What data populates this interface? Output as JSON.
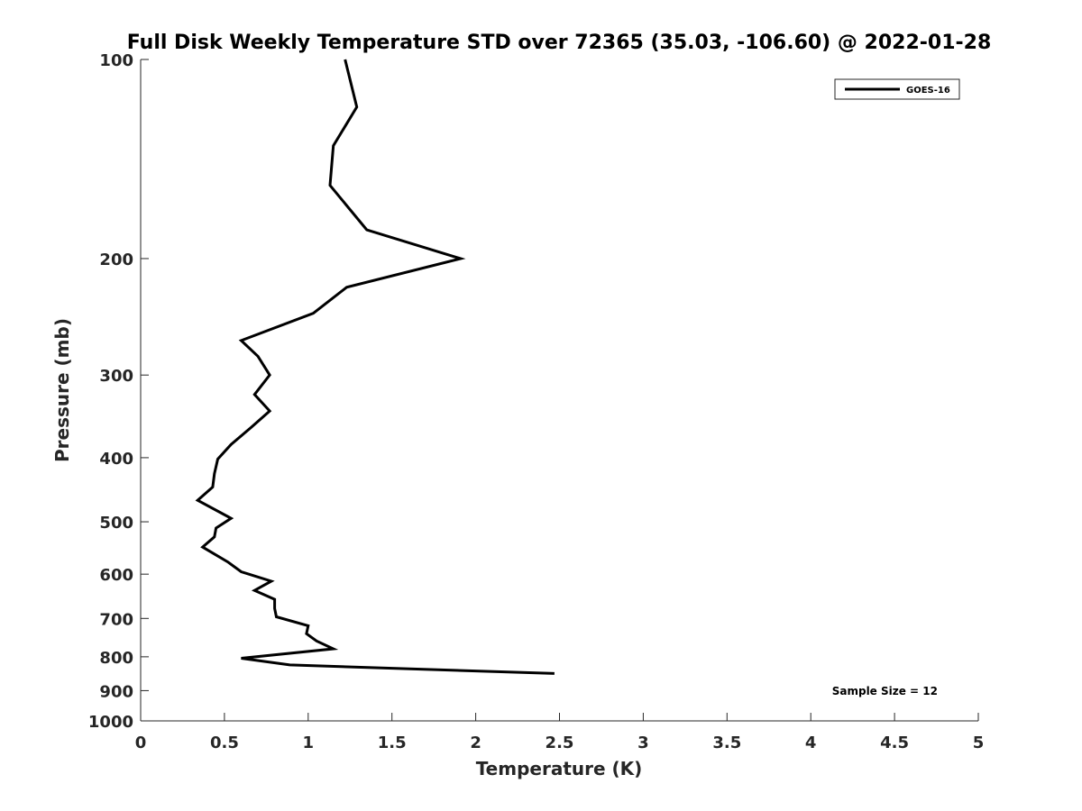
{
  "chart_data": {
    "type": "line",
    "title": "Full Disk Weekly Temperature STD over 72365 (35.03, -106.60) @ 2022-01-28",
    "xlabel": "Temperature (K)",
    "ylabel": "Pressure (mb)",
    "xlim": [
      0,
      5
    ],
    "ylim": [
      100,
      1000
    ],
    "y_scale": "log",
    "y_reversed": true,
    "x_ticks": [
      "0",
      "0.5",
      "1",
      "1.5",
      "2",
      "2.5",
      "3",
      "3.5",
      "4",
      "4.5",
      "5"
    ],
    "x_tick_values": [
      0,
      0.5,
      1,
      1.5,
      2,
      2.5,
      3,
      3.5,
      4,
      4.5,
      5
    ],
    "y_ticks": [
      "100",
      "200",
      "300",
      "400",
      "500",
      "600",
      "700",
      "800",
      "900",
      "1000"
    ],
    "y_tick_values": [
      100,
      200,
      300,
      400,
      500,
      600,
      700,
      800,
      900,
      1000
    ],
    "grid": false,
    "legend_position": "top-right",
    "line_color": "#000000",
    "annotation": "Sample Size = 12",
    "series": [
      {
        "name": "GOES-16",
        "points": [
          {
            "x": 1.22,
            "y": 100
          },
          {
            "x": 1.29,
            "y": 118
          },
          {
            "x": 1.15,
            "y": 135
          },
          {
            "x": 1.13,
            "y": 155
          },
          {
            "x": 1.35,
            "y": 181
          },
          {
            "x": 1.91,
            "y": 200
          },
          {
            "x": 1.23,
            "y": 221
          },
          {
            "x": 1.03,
            "y": 242
          },
          {
            "x": 0.6,
            "y": 266
          },
          {
            "x": 0.7,
            "y": 281
          },
          {
            "x": 0.77,
            "y": 300
          },
          {
            "x": 0.68,
            "y": 321
          },
          {
            "x": 0.77,
            "y": 340
          },
          {
            "x": 0.66,
            "y": 360
          },
          {
            "x": 0.54,
            "y": 382
          },
          {
            "x": 0.46,
            "y": 402
          },
          {
            "x": 0.44,
            "y": 423
          },
          {
            "x": 0.43,
            "y": 443
          },
          {
            "x": 0.34,
            "y": 464
          },
          {
            "x": 0.54,
            "y": 494
          },
          {
            "x": 0.45,
            "y": 511
          },
          {
            "x": 0.44,
            "y": 527
          },
          {
            "x": 0.37,
            "y": 546
          },
          {
            "x": 0.52,
            "y": 575
          },
          {
            "x": 0.6,
            "y": 595
          },
          {
            "x": 0.78,
            "y": 615
          },
          {
            "x": 0.68,
            "y": 635
          },
          {
            "x": 0.8,
            "y": 655
          },
          {
            "x": 0.8,
            "y": 676
          },
          {
            "x": 0.81,
            "y": 696
          },
          {
            "x": 1.0,
            "y": 718
          },
          {
            "x": 0.99,
            "y": 738
          },
          {
            "x": 1.05,
            "y": 757
          },
          {
            "x": 1.15,
            "y": 778
          },
          {
            "x": 0.6,
            "y": 804
          },
          {
            "x": 0.89,
            "y": 823
          },
          {
            "x": 2.47,
            "y": 848
          }
        ]
      }
    ]
  }
}
